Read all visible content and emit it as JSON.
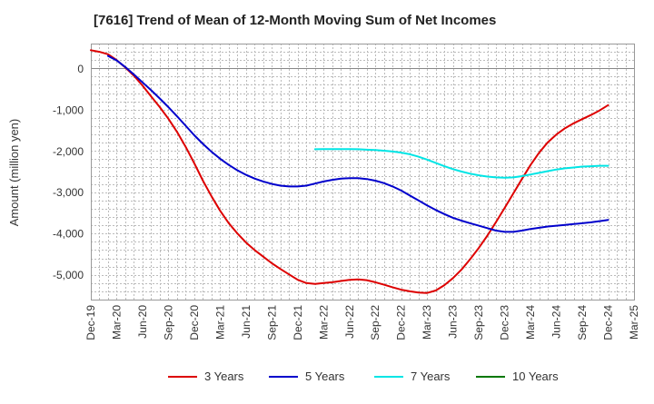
{
  "chart_data": {
    "type": "line",
    "title": "[7616]  Trend of Mean of 12-Month Moving Sum of Net Incomes",
    "ylabel": "Amount (million yen)",
    "xlabel": "",
    "ylim": [
      -5600,
      600
    ],
    "yticks": [
      0,
      -1000,
      -2000,
      -3000,
      -4000,
      -5000
    ],
    "ytick_labels": [
      "0",
      "-1,000",
      "-2,000",
      "-3,000",
      "-4,000",
      "-5,000"
    ],
    "xticks": [
      "2019-12",
      "2020-03",
      "2020-06",
      "2020-09",
      "2020-12",
      "2021-03",
      "2021-06",
      "2021-09",
      "2021-12",
      "2022-03",
      "2022-06",
      "2022-09",
      "2022-12",
      "2023-03",
      "2023-06",
      "2023-09",
      "2023-12",
      "2024-03",
      "2024-06",
      "2024-09",
      "2024-12",
      "2025-03"
    ],
    "xtick_labels": [
      "Dec-19",
      "Mar-20",
      "Jun-20",
      "Sep-20",
      "Dec-20",
      "Mar-21",
      "Jun-21",
      "Sep-21",
      "Dec-21",
      "Mar-22",
      "Jun-22",
      "Sep-22",
      "Dec-22",
      "Mar-23",
      "Jun-23",
      "Sep-23",
      "Dec-23",
      "Mar-24",
      "Jun-24",
      "Sep-24",
      "Dec-24",
      "Mar-25"
    ],
    "grid": true,
    "legend_position": "bottom",
    "colors": {
      "3 Years": "#dd0000",
      "5 Years": "#0000cc",
      "7 Years": "#00e5e5",
      "10 Years": "#007700"
    },
    "series": [
      {
        "name": "3 Years",
        "x": [
          "2019-12",
          "2020-01",
          "2020-02",
          "2020-03",
          "2020-04",
          "2020-05",
          "2020-06",
          "2020-07",
          "2020-08",
          "2020-09",
          "2020-10",
          "2020-11",
          "2020-12",
          "2021-01",
          "2021-02",
          "2021-03",
          "2021-04",
          "2021-05",
          "2021-06",
          "2021-07",
          "2021-08",
          "2021-09",
          "2021-10",
          "2021-11",
          "2021-12",
          "2022-01",
          "2022-02",
          "2022-03",
          "2022-04",
          "2022-05",
          "2022-06",
          "2022-07",
          "2022-08",
          "2022-09",
          "2022-10",
          "2022-11",
          "2022-12",
          "2023-01",
          "2023-02",
          "2023-03",
          "2023-04",
          "2023-05",
          "2023-06",
          "2023-07",
          "2023-08",
          "2023-09",
          "2023-10",
          "2023-11",
          "2023-12",
          "2024-01",
          "2024-02",
          "2024-03",
          "2024-04",
          "2024-05",
          "2024-06",
          "2024-07",
          "2024-08",
          "2024-09",
          "2024-10",
          "2024-11",
          "2024-12"
        ],
        "values": [
          440,
          400,
          340,
          200,
          20,
          -180,
          -420,
          -680,
          -940,
          -1220,
          -1540,
          -1900,
          -2300,
          -2720,
          -3100,
          -3450,
          -3750,
          -4000,
          -4220,
          -4400,
          -4560,
          -4720,
          -4860,
          -4990,
          -5120,
          -5200,
          -5220,
          -5200,
          -5180,
          -5150,
          -5120,
          -5110,
          -5130,
          -5180,
          -5240,
          -5300,
          -5360,
          -5400,
          -5430,
          -5440,
          -5380,
          -5250,
          -5080,
          -4870,
          -4620,
          -4350,
          -4050,
          -3720,
          -3380,
          -3030,
          -2680,
          -2340,
          -2040,
          -1790,
          -1600,
          -1450,
          -1330,
          -1230,
          -1130,
          -1020,
          -890
        ]
      },
      {
        "name": "5 Years",
        "x": [
          "2020-02",
          "2020-03",
          "2020-04",
          "2020-05",
          "2020-06",
          "2020-07",
          "2020-08",
          "2020-09",
          "2020-10",
          "2020-11",
          "2020-12",
          "2021-01",
          "2021-02",
          "2021-03",
          "2021-04",
          "2021-05",
          "2021-06",
          "2021-07",
          "2021-08",
          "2021-09",
          "2021-10",
          "2021-11",
          "2021-12",
          "2022-01",
          "2022-02",
          "2022-03",
          "2022-04",
          "2022-05",
          "2022-06",
          "2022-07",
          "2022-08",
          "2022-09",
          "2022-10",
          "2022-11",
          "2022-12",
          "2023-01",
          "2023-02",
          "2023-03",
          "2023-04",
          "2023-05",
          "2023-06",
          "2023-07",
          "2023-08",
          "2023-09",
          "2023-10",
          "2023-11",
          "2023-12",
          "2024-01",
          "2024-02",
          "2024-03",
          "2024-04",
          "2024-05",
          "2024-06",
          "2024-07",
          "2024-08",
          "2024-09",
          "2024-10",
          "2024-11",
          "2024-12"
        ],
        "values": [
          300,
          190,
          30,
          -150,
          -340,
          -530,
          -730,
          -940,
          -1160,
          -1390,
          -1620,
          -1830,
          -2020,
          -2190,
          -2340,
          -2470,
          -2580,
          -2670,
          -2740,
          -2800,
          -2840,
          -2860,
          -2860,
          -2840,
          -2790,
          -2740,
          -2700,
          -2670,
          -2660,
          -2660,
          -2680,
          -2720,
          -2780,
          -2860,
          -2960,
          -3080,
          -3200,
          -3320,
          -3430,
          -3530,
          -3620,
          -3690,
          -3750,
          -3810,
          -3870,
          -3930,
          -3960,
          -3960,
          -3930,
          -3890,
          -3860,
          -3830,
          -3810,
          -3790,
          -3770,
          -3750,
          -3730,
          -3700,
          -3670
        ]
      },
      {
        "name": "7 Years",
        "x": [
          "2022-02",
          "2022-03",
          "2022-04",
          "2022-05",
          "2022-06",
          "2022-07",
          "2022-08",
          "2022-09",
          "2022-10",
          "2022-11",
          "2022-12",
          "2023-01",
          "2023-02",
          "2023-03",
          "2023-04",
          "2023-05",
          "2023-06",
          "2023-07",
          "2023-08",
          "2023-09",
          "2023-10",
          "2023-11",
          "2023-12",
          "2024-01",
          "2024-02",
          "2024-03",
          "2024-04",
          "2024-05",
          "2024-06",
          "2024-07",
          "2024-08",
          "2024-09",
          "2024-10",
          "2024-11",
          "2024-12"
        ],
        "values": [
          -1960,
          -1955,
          -1955,
          -1955,
          -1955,
          -1960,
          -1970,
          -1980,
          -1995,
          -2015,
          -2040,
          -2080,
          -2140,
          -2210,
          -2290,
          -2370,
          -2440,
          -2500,
          -2550,
          -2590,
          -2620,
          -2640,
          -2650,
          -2640,
          -2610,
          -2570,
          -2530,
          -2490,
          -2450,
          -2420,
          -2400,
          -2380,
          -2370,
          -2360,
          -2360
        ]
      },
      {
        "name": "10 Years",
        "x": [],
        "values": []
      }
    ]
  }
}
